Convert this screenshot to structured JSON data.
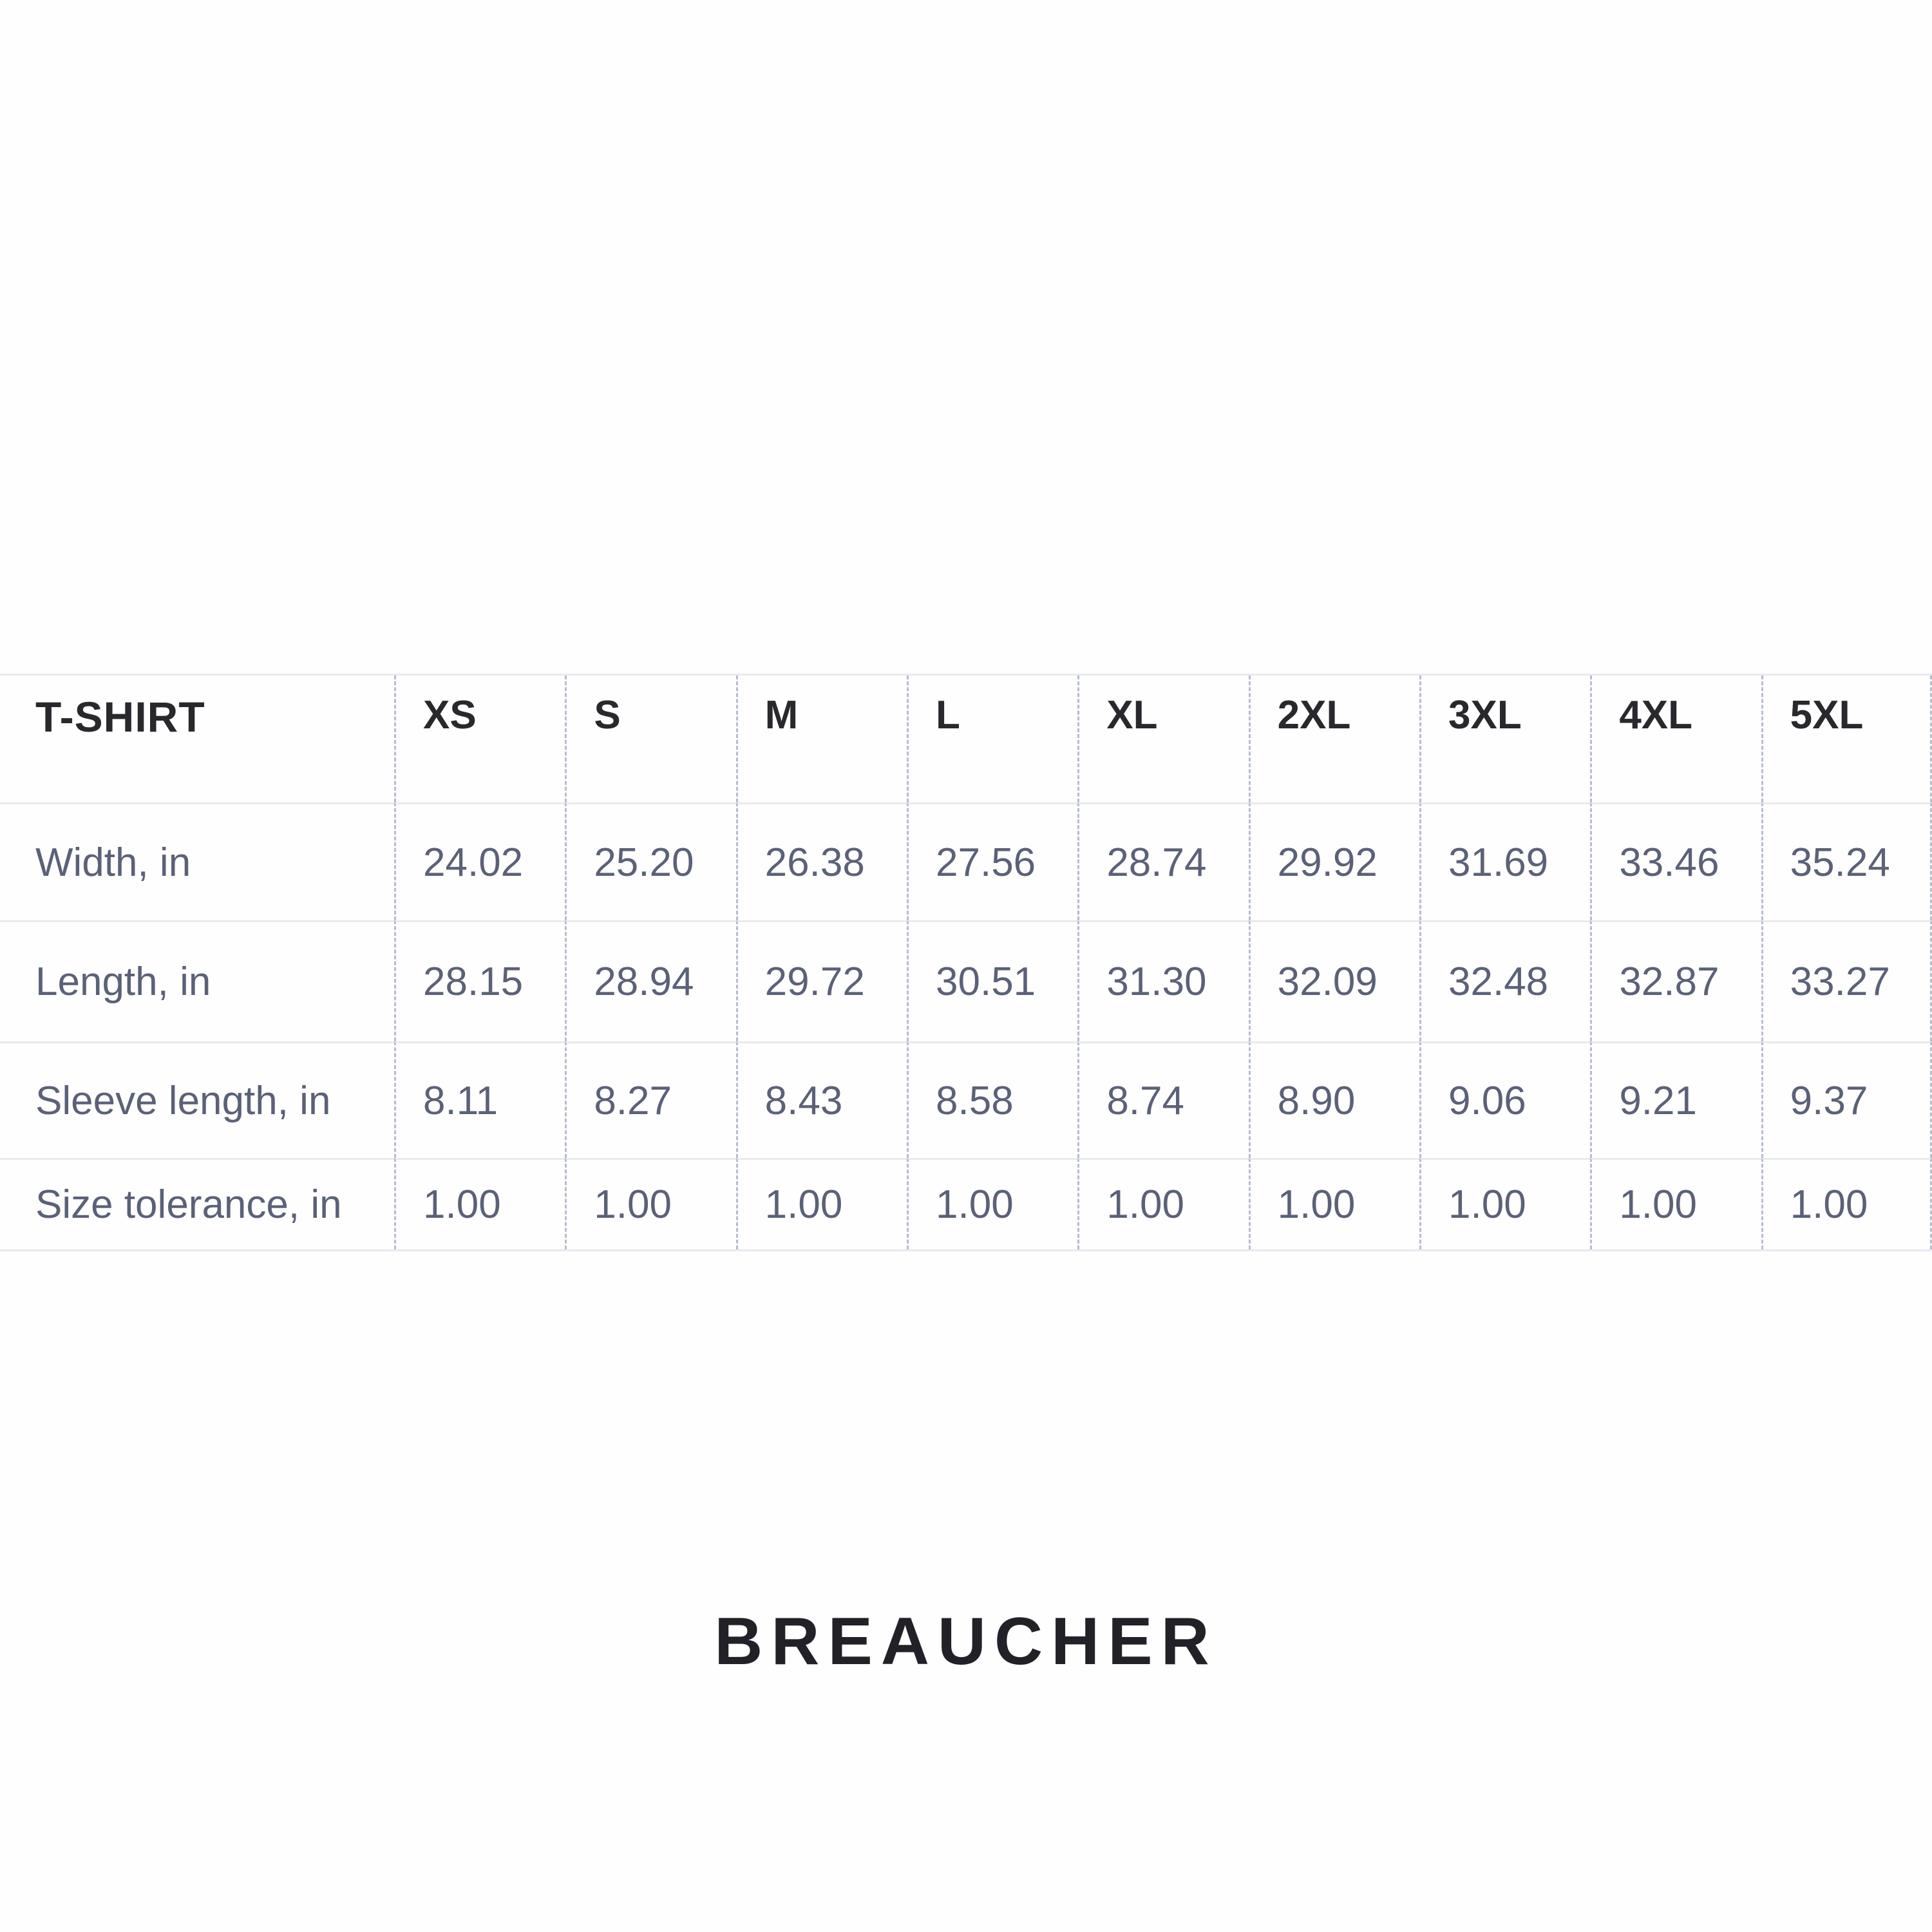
{
  "table": {
    "title": "T-SHIRT",
    "sizes": [
      "XS",
      "S",
      "M",
      "L",
      "XL",
      "2XL",
      "3XL",
      "4XL",
      "5XL"
    ],
    "rows": [
      {
        "label": "Width, in",
        "values": [
          "24.02",
          "25.20",
          "26.38",
          "27.56",
          "28.74",
          "29.92",
          "31.69",
          "33.46",
          "35.24"
        ]
      },
      {
        "label": "Length, in",
        "values": [
          "28.15",
          "28.94",
          "29.72",
          "30.51",
          "31.30",
          "32.09",
          "32.48",
          "32.87",
          "33.27"
        ]
      },
      {
        "label": "Sleeve length, in",
        "values": [
          "8.11",
          "8.27",
          "8.43",
          "8.58",
          "8.74",
          "8.90",
          "9.06",
          "9.21",
          "9.37"
        ]
      },
      {
        "label": "Size tolerance, in",
        "values": [
          "1.00",
          "1.00",
          "1.00",
          "1.00",
          "1.00",
          "1.00",
          "1.00",
          "1.00",
          "1.00"
        ]
      }
    ]
  },
  "brand": "BREAUCHER",
  "colors": {
    "header_text": "#28282d",
    "data_text": "#5a6178",
    "row_line": "#e9eaef",
    "column_dash": "#b5bcd1",
    "brand_text": "#212127",
    "background": "#fefefe"
  }
}
